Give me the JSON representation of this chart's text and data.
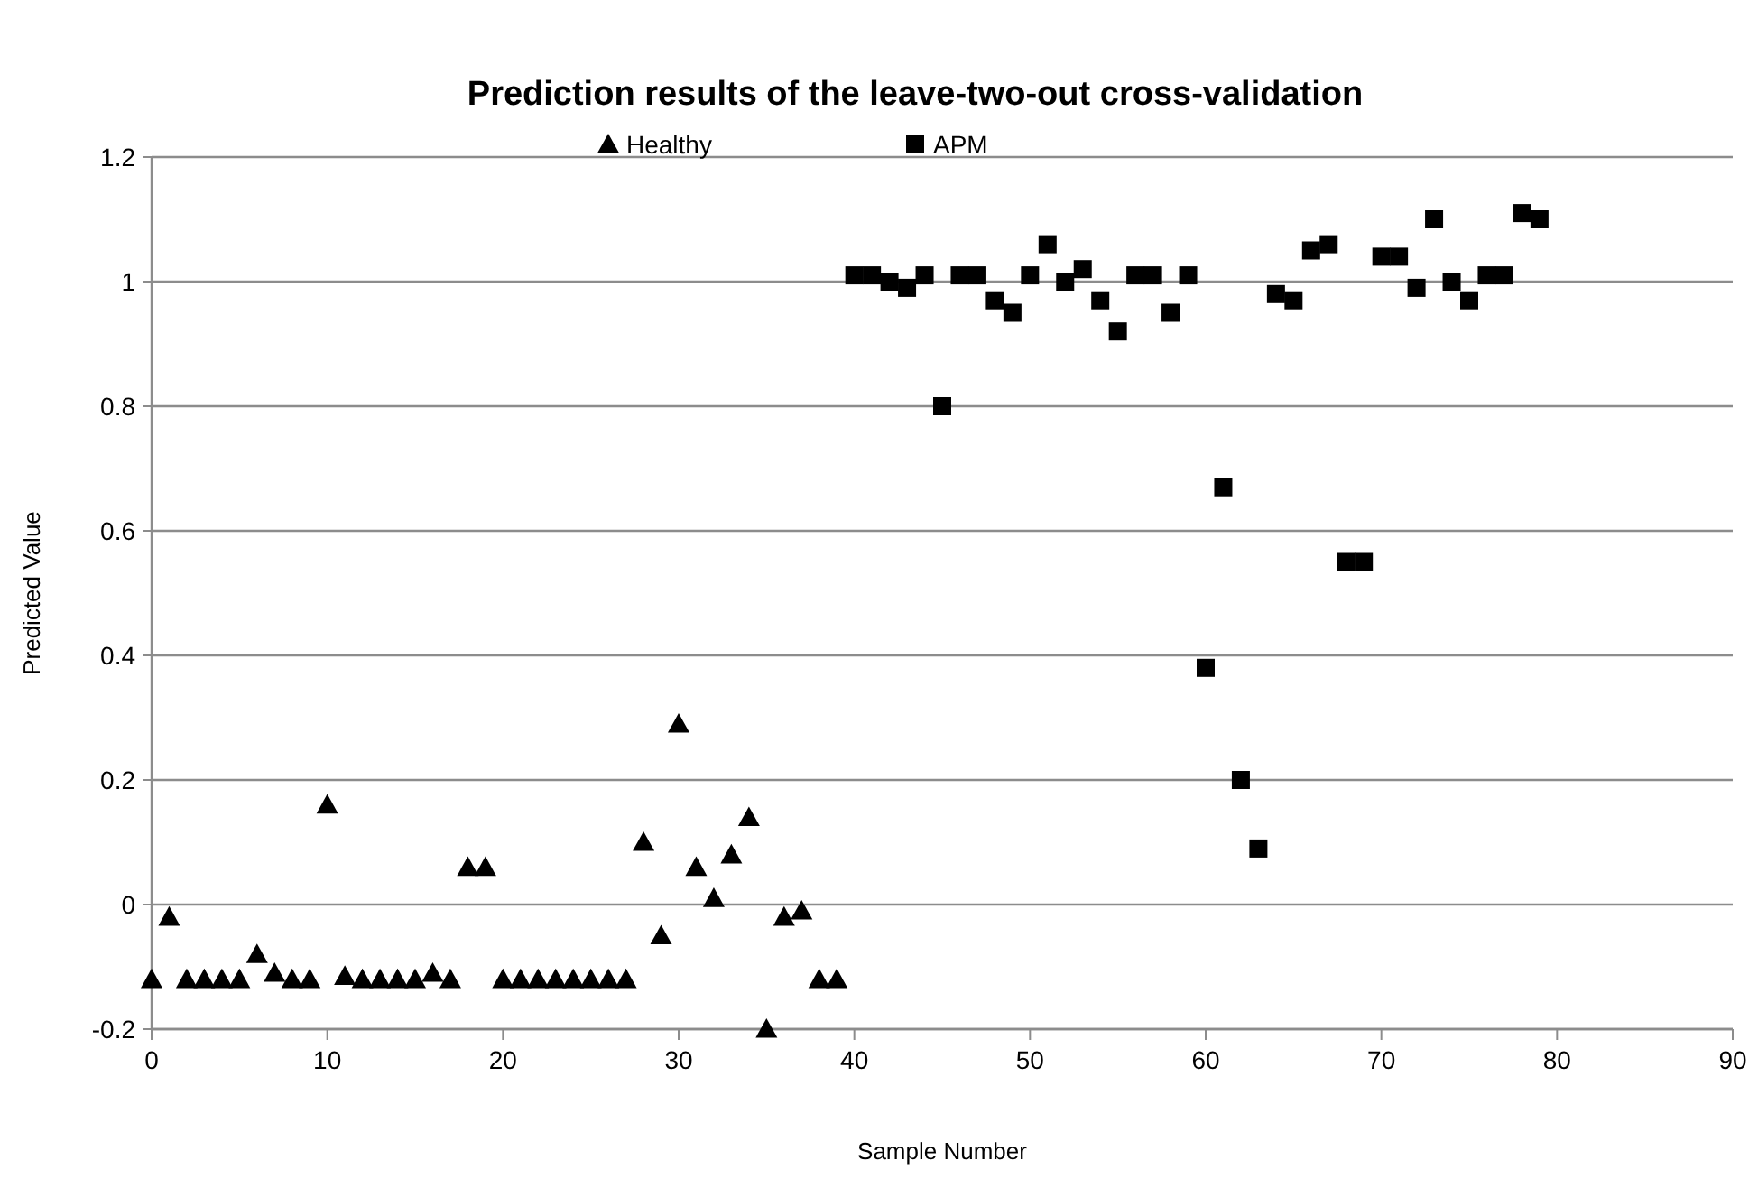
{
  "chart_data": {
    "type": "scatter",
    "title": "Prediction results of the leave-two-out cross-validation",
    "xlabel": "Sample Number",
    "ylabel": "Predicted Value",
    "xlim": [
      0,
      90
    ],
    "xticks": [
      0,
      10,
      20,
      30,
      40,
      50,
      60,
      70,
      80,
      90
    ],
    "ylim": [
      -0.2,
      1.2
    ],
    "yticks": [
      -0.2,
      0,
      0.2,
      0.4,
      0.6,
      0.8,
      1,
      1.2
    ],
    "grid": "y",
    "legend": "top",
    "series": [
      {
        "name": "Healthy",
        "color": "#000000",
        "marker": "triangle",
        "x": [
          0,
          1,
          2,
          3,
          4,
          5,
          6,
          7,
          8,
          9,
          10,
          11,
          12,
          13,
          14,
          15,
          16,
          17,
          18,
          19,
          20,
          21,
          22,
          23,
          24,
          25,
          26,
          27,
          28,
          29,
          30,
          31,
          32,
          33,
          34,
          35,
          36,
          37,
          38,
          39
        ],
        "values": [
          -0.12,
          -0.02,
          -0.12,
          -0.12,
          -0.12,
          -0.12,
          -0.08,
          -0.11,
          -0.12,
          -0.12,
          0.16,
          -0.115,
          -0.12,
          -0.12,
          -0.12,
          -0.12,
          -0.11,
          -0.12,
          0.06,
          0.06,
          -0.12,
          -0.12,
          -0.12,
          -0.12,
          -0.12,
          -0.12,
          -0.12,
          -0.12,
          0.1,
          -0.05,
          0.29,
          0.06,
          0.01,
          0.08,
          0.14,
          -0.2,
          -0.02,
          -0.01,
          -0.12,
          -0.12
        ]
      },
      {
        "name": "APM",
        "color": "#000000",
        "marker": "square",
        "x": [
          40,
          41,
          42,
          43,
          44,
          45,
          46,
          47,
          48,
          49,
          50,
          51,
          52,
          53,
          54,
          55,
          56,
          57,
          58,
          59,
          60,
          61,
          62,
          63,
          64,
          65,
          66,
          67,
          68,
          69,
          70,
          71,
          72,
          73,
          74,
          75,
          76,
          77,
          78,
          79
        ],
        "values": [
          1.01,
          1.01,
          1.0,
          0.99,
          1.01,
          0.8,
          1.01,
          1.01,
          0.97,
          0.95,
          1.01,
          1.06,
          1.0,
          1.02,
          0.97,
          0.92,
          1.01,
          1.01,
          0.95,
          1.01,
          0.38,
          0.67,
          0.2,
          0.09,
          0.98,
          0.97,
          1.05,
          1.06,
          0.55,
          0.55,
          1.04,
          1.04,
          0.99,
          1.1,
          1.0,
          0.97,
          1.01,
          1.01,
          1.11,
          1.1
        ]
      }
    ]
  }
}
